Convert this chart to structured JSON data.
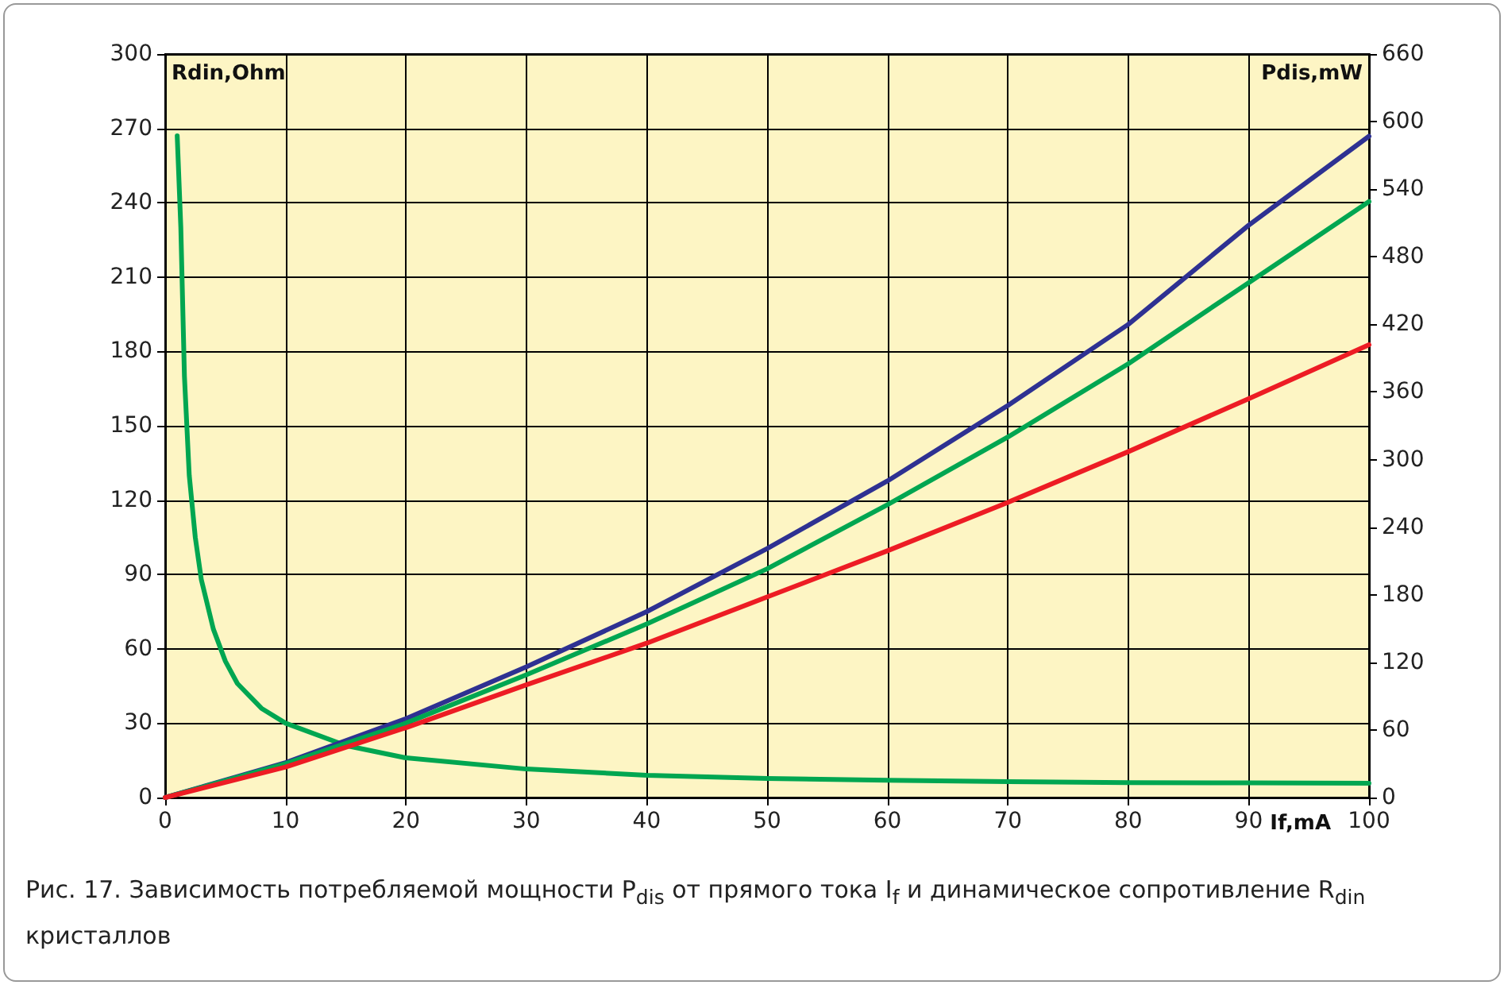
{
  "chart_data": {
    "type": "line",
    "xlabel": "If,mA",
    "ylabel": "Rdin,Ohm",
    "y2label": "Pdis,mW",
    "xlim": [
      0,
      100
    ],
    "xticks": [
      0,
      10,
      20,
      30,
      40,
      50,
      60,
      70,
      80,
      90,
      100
    ],
    "ylim": [
      0,
      300
    ],
    "yticks": [
      0,
      30,
      60,
      90,
      120,
      150,
      180,
      210,
      240,
      270,
      300
    ],
    "y2lim": [
      0,
      660
    ],
    "y2ticks": [
      0,
      60,
      120,
      180,
      240,
      300,
      360,
      420,
      480,
      540,
      600,
      660
    ],
    "grid": true,
    "marker": "none",
    "line_style": "solid",
    "series": [
      {
        "color": "#00a651",
        "x": [
          1,
          1.3,
          1.6,
          2,
          2.5,
          3,
          4,
          5,
          6,
          8,
          10,
          15,
          20,
          30,
          40,
          50,
          60,
          70,
          80,
          90,
          100
        ],
        "values": [
          267,
          230,
          170,
          130,
          105,
          88,
          68,
          55,
          46,
          36,
          30,
          21,
          16,
          11.5,
          9,
          7.7,
          7,
          6.4,
          6,
          5.9,
          5.8
        ]
      },
      {
        "color": "#2e3192",
        "axis": "y2",
        "x": [
          0,
          10,
          20,
          30,
          40,
          50,
          60,
          70,
          80,
          90,
          100
        ],
        "values": [
          0,
          31,
          70,
          116,
          165,
          221,
          281,
          348,
          420,
          508,
          587
        ]
      },
      {
        "color": "#00a651",
        "axis": "y2",
        "x": [
          0,
          10,
          20,
          30,
          40,
          50,
          60,
          70,
          80,
          90,
          100
        ],
        "values": [
          0,
          30,
          66,
          109,
          154,
          203,
          260,
          320,
          385,
          457,
          529
        ]
      },
      {
        "color": "#ed1c24",
        "axis": "y2",
        "x": [
          0,
          10,
          20,
          30,
          40,
          50,
          60,
          70,
          80,
          90,
          100
        ],
        "values": [
          0,
          27,
          62,
          100,
          137,
          178,
          219,
          262,
          307,
          354,
          402
        ]
      }
    ],
    "annotations": [
      "Рис. 17. Зависимость потребляемой мощности P$_{dis}$ от прямого тока I$_{f}$ и динамическое сопротивление R$_{din}$ кристаллов"
    ]
  }
}
